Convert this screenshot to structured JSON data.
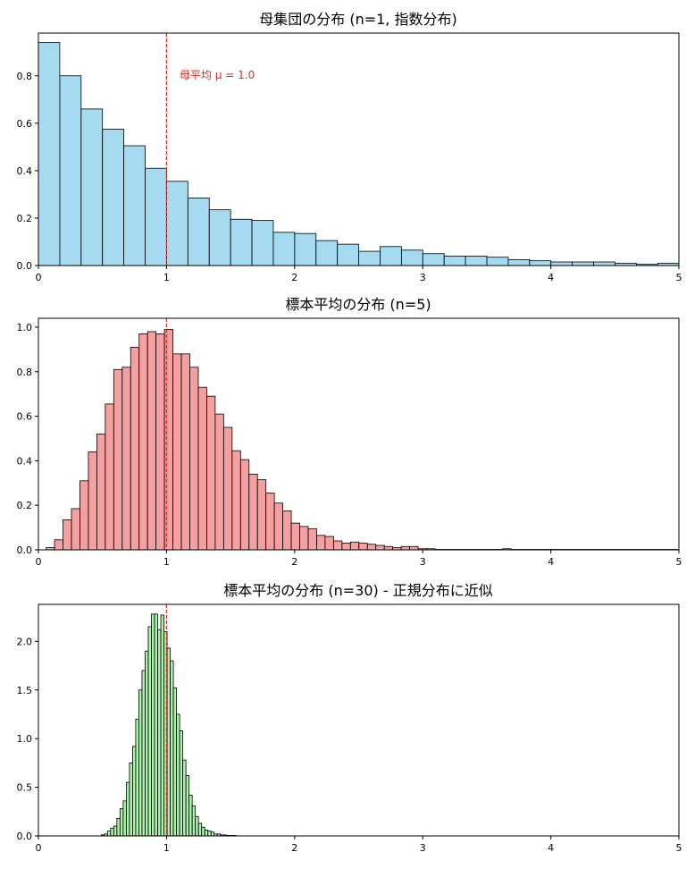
{
  "chart_data": [
    {
      "type": "bar",
      "title": "母集団の分布 (n=1, 指数分布)",
      "xlabel": "",
      "ylabel": "",
      "xlim": [
        0,
        5
      ],
      "ylim": [
        0,
        0.98
      ],
      "xticks": [
        "0",
        "1",
        "2",
        "3",
        "4",
        "5"
      ],
      "yticks": [
        "0.0",
        "0.2",
        "0.4",
        "0.6",
        "0.8"
      ],
      "bar_color": "#87ceeb",
      "edge_color": "#000000",
      "mean_line": {
        "x": 1.0,
        "color": "#e8261c",
        "label": "母平均 μ = 1.0"
      },
      "bin_start": 0.0,
      "bin_width": 0.1667,
      "values": [
        0.94,
        0.8,
        0.66,
        0.575,
        0.505,
        0.41,
        0.355,
        0.285,
        0.235,
        0.195,
        0.19,
        0.14,
        0.135,
        0.105,
        0.09,
        0.06,
        0.08,
        0.065,
        0.05,
        0.04,
        0.04,
        0.035,
        0.025,
        0.02,
        0.015,
        0.015,
        0.015,
        0.01,
        0.005,
        0.01
      ]
    },
    {
      "type": "bar",
      "title": "標本平均の分布 (n=5)",
      "xlabel": "",
      "ylabel": "",
      "xlim": [
        0,
        5
      ],
      "ylim": [
        0,
        1.04
      ],
      "xticks": [
        "0",
        "1",
        "2",
        "3",
        "4",
        "5"
      ],
      "yticks": [
        "0.0",
        "0.2",
        "0.4",
        "0.6",
        "0.8",
        "1.0"
      ],
      "bar_color": "#f08080",
      "edge_color": "#000000",
      "mean_line": {
        "x": 1.0,
        "color": "#e8261c"
      },
      "bin_start": 0.06,
      "bin_width": 0.066,
      "values": [
        0.01,
        0.045,
        0.135,
        0.185,
        0.31,
        0.44,
        0.52,
        0.655,
        0.81,
        0.82,
        0.91,
        0.97,
        0.98,
        0.97,
        0.99,
        0.88,
        0.88,
        0.82,
        0.73,
        0.69,
        0.61,
        0.55,
        0.445,
        0.405,
        0.34,
        0.315,
        0.255,
        0.21,
        0.175,
        0.12,
        0.105,
        0.095,
        0.065,
        0.06,
        0.04,
        0.03,
        0.035,
        0.03,
        0.025,
        0.02,
        0.015,
        0.01,
        0.015,
        0.015,
        0.005,
        0.005,
        0.002,
        0.002,
        0.002,
        0.002,
        0.002,
        0.002,
        0.002,
        0.002,
        0.005,
        0.002,
        0.002,
        0.002,
        0.002,
        0.002,
        0.002,
        0.002,
        0.002,
        0.002,
        0.002,
        0.002,
        0.002,
        0.002,
        0.002,
        0.002,
        0.002,
        0.002,
        0.002,
        0.002,
        0.002,
        0.002,
        0.002,
        0.002,
        0.002,
        0.002,
        0.002,
        0.002,
        0.002,
        0.002,
        0.002,
        0.002,
        0.002,
        0.002,
        0.002,
        0.002,
        0.002,
        0.002,
        0.002,
        0.002,
        0.002
      ]
    },
    {
      "type": "bar",
      "title": "標本平均の分布 (n=30) - 正規分布に近似",
      "xlabel": "",
      "ylabel": "",
      "xlim": [
        0,
        5
      ],
      "ylim": [
        0,
        2.38
      ],
      "xticks": [
        "0",
        "1",
        "2",
        "3",
        "4",
        "5"
      ],
      "yticks": [
        "0.0",
        "0.5",
        "1.0",
        "1.5",
        "2.0"
      ],
      "bar_color": "#90ee90",
      "edge_color": "#000000",
      "mean_line": {
        "x": 1.0,
        "color": "#e8261c"
      },
      "bin_start": 0.49,
      "bin_width": 0.0245,
      "values": [
        0.01,
        0.02,
        0.05,
        0.08,
        0.1,
        0.18,
        0.28,
        0.36,
        0.55,
        0.75,
        0.92,
        1.2,
        1.5,
        1.7,
        1.9,
        2.15,
        2.28,
        2.28,
        2.12,
        2.27,
        2.1,
        1.93,
        1.8,
        1.52,
        1.25,
        1.08,
        0.78,
        0.62,
        0.42,
        0.31,
        0.2,
        0.13,
        0.09,
        0.06,
        0.05,
        0.04,
        0.02,
        0.02,
        0.01,
        0.01,
        0.005,
        0.005,
        0.005
      ]
    }
  ]
}
